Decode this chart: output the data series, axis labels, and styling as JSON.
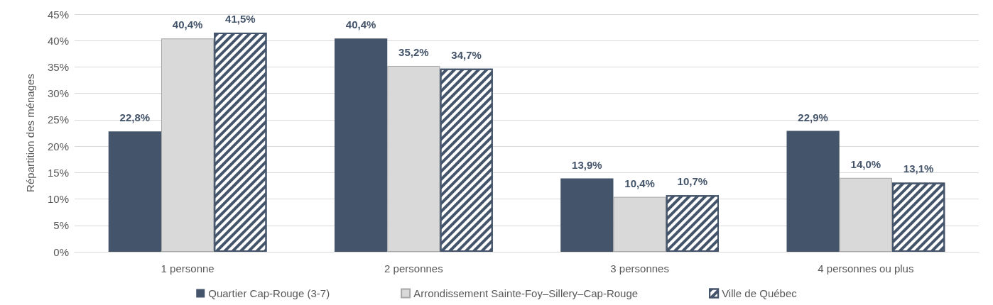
{
  "chart_data": {
    "type": "bar",
    "ylabel": "Répartition des ménages",
    "categories": [
      "1 personne",
      "2 personnes",
      "3 personnes",
      "4 personnes ou plus"
    ],
    "series": [
      {
        "name": "Quartier Cap-Rouge (3-7)",
        "color": "#44546a",
        "values": [
          22.8,
          40.4,
          13.9,
          22.9
        ],
        "value_labels": [
          "22,8%",
          "40,4%",
          "13,9%",
          "22,9%"
        ]
      },
      {
        "name": "Arrondissement Sainte-Foy–Sillery–Cap-Rouge",
        "color": "#d9d9d9",
        "values": [
          40.4,
          35.2,
          10.4,
          14.0
        ],
        "value_labels": [
          "40,4%",
          "35,2%",
          "10,4%",
          "14,0%"
        ]
      },
      {
        "name": "Ville de Québec",
        "color": "#44546a",
        "values": [
          41.5,
          34.7,
          10.7,
          13.1
        ],
        "value_labels": [
          "41,5%",
          "34,7%",
          "10,7%",
          "13,1%"
        ]
      }
    ],
    "ylim": [
      0,
      45
    ],
    "yticks": [
      {
        "value": 0,
        "label": "0%"
      },
      {
        "value": 5,
        "label": "5%"
      },
      {
        "value": 10,
        "label": "10%"
      },
      {
        "value": 15,
        "label": "15%"
      },
      {
        "value": 20,
        "label": "20%"
      },
      {
        "value": 25,
        "label": "25%"
      },
      {
        "value": 30,
        "label": "30%"
      },
      {
        "value": 35,
        "label": "35%"
      },
      {
        "value": 40,
        "label": "40%"
      },
      {
        "value": 45,
        "label": "45%"
      }
    ],
    "grid": "y",
    "legend": "bottom"
  }
}
